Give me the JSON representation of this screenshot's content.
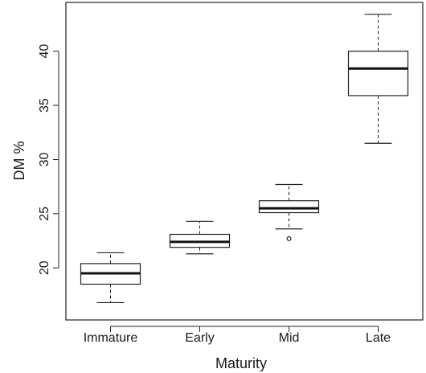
{
  "chart_data": {
    "type": "boxplot",
    "title": "",
    "xlabel": "Maturity",
    "ylabel": "DM %",
    "ylim": [
      15.2,
      44.5
    ],
    "yticks": [
      20,
      25,
      30,
      35,
      40
    ],
    "ytick_labels": [
      "20",
      "25",
      "30",
      "35",
      "40"
    ],
    "categories": [
      "Immature",
      "Early",
      "Mid",
      "Late"
    ],
    "boxes": [
      {
        "category": "Immature",
        "whisker_low": 16.8,
        "q1": 18.5,
        "median": 19.5,
        "q3": 20.4,
        "whisker_high": 21.4,
        "outliers": []
      },
      {
        "category": "Early",
        "whisker_low": 21.3,
        "q1": 21.9,
        "median": 22.4,
        "q3": 23.1,
        "whisker_high": 24.3,
        "outliers": []
      },
      {
        "category": "Mid",
        "whisker_low": 23.6,
        "q1": 25.1,
        "median": 25.5,
        "q3": 26.2,
        "whisker_high": 27.7,
        "outliers": [
          22.7
        ]
      },
      {
        "category": "Late",
        "whisker_low": 31.5,
        "q1": 35.9,
        "median": 38.4,
        "q3": 40.0,
        "whisker_high": 43.4,
        "outliers": []
      }
    ],
    "grid": false,
    "legend": "none"
  }
}
